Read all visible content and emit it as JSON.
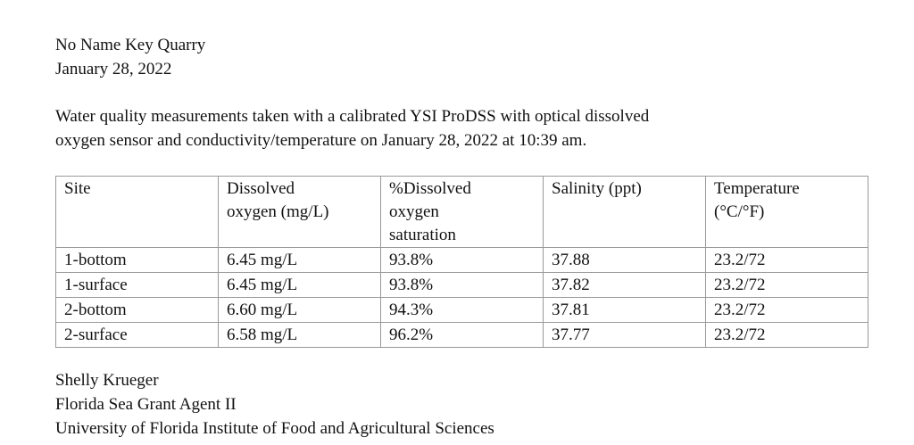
{
  "header": {
    "title": "No Name Key Quarry",
    "date": "January 28, 2022"
  },
  "intro": {
    "lines": [
      "Water quality measurements taken with a calibrated YSI ProDSS with optical dissolved",
      "oxygen sensor and conductivity/temperature on January 28, 2022 at 10:39 am."
    ]
  },
  "table": {
    "columns": [
      [
        "Site"
      ],
      [
        "Dissolved",
        "oxygen (mg/L)"
      ],
      [
        "%Dissolved",
        "oxygen",
        "saturation"
      ],
      [
        "Salinity (ppt)"
      ],
      [
        "Temperature",
        "(°C/°F)"
      ]
    ],
    "rows": [
      [
        "1-bottom",
        "6.45 mg/L",
        "93.8%",
        "37.88",
        "23.2/72"
      ],
      [
        "1-surface",
        "6.45 mg/L",
        "93.8%",
        "37.82",
        "23.2/72"
      ],
      [
        "2-bottom",
        "6.60 mg/L",
        "94.3%",
        "37.81",
        "23.2/72"
      ],
      [
        "2-surface",
        "6.58 mg/L",
        "96.2%",
        "37.77",
        "23.2/72"
      ]
    ]
  },
  "signature": {
    "name": "Shelly Krueger",
    "role": "Florida Sea Grant Agent II",
    "organization": "University of Florida Institute of Food and Agricultural Sciences"
  }
}
